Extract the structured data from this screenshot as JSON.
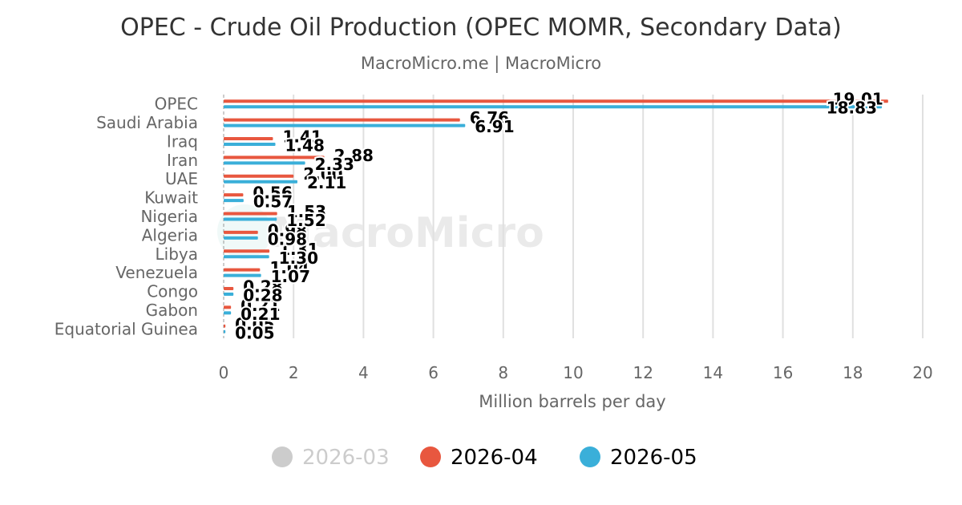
{
  "chart_data": {
    "type": "bar",
    "orientation": "horizontal",
    "title": "OPEC - Crude Oil Production (OPEC MOMR, Secondary Data)",
    "subtitle": "MacroMicro.me | MacroMicro",
    "xlabel": "Million barrels per day",
    "ylabel": "",
    "xlim": [
      0,
      20
    ],
    "x_ticks": [
      "0",
      "2",
      "4",
      "6",
      "8",
      "10",
      "12",
      "14",
      "16",
      "18",
      "20"
    ],
    "grid": true,
    "legend_position": "bottom",
    "watermark": "MacroMicro",
    "categories": [
      "OPEC",
      "Saudi Arabia",
      "Iraq",
      "Iran",
      "UAE",
      "Kuwait",
      "Nigeria",
      "Algeria",
      "Libya",
      "Venezuela",
      "Congo",
      "Gabon",
      "Equatorial Guinea"
    ],
    "series": [
      {
        "name": "2026-03",
        "color": "#cccccc",
        "visible": false,
        "values": [
          null,
          null,
          null,
          null,
          null,
          null,
          null,
          null,
          null,
          null,
          null,
          null,
          null
        ]
      },
      {
        "name": "2026-04",
        "color": "#e8573f",
        "visible": true,
        "values": [
          19.01,
          6.76,
          1.41,
          2.88,
          2.0,
          0.56,
          1.53,
          0.98,
          1.31,
          1.04,
          0.28,
          0.21,
          0.05
        ]
      },
      {
        "name": "2026-05",
        "color": "#3aafd9",
        "visible": true,
        "values": [
          18.83,
          6.91,
          1.48,
          2.33,
          2.11,
          0.57,
          1.52,
          0.98,
          1.3,
          1.07,
          0.28,
          0.21,
          0.05
        ]
      }
    ]
  }
}
